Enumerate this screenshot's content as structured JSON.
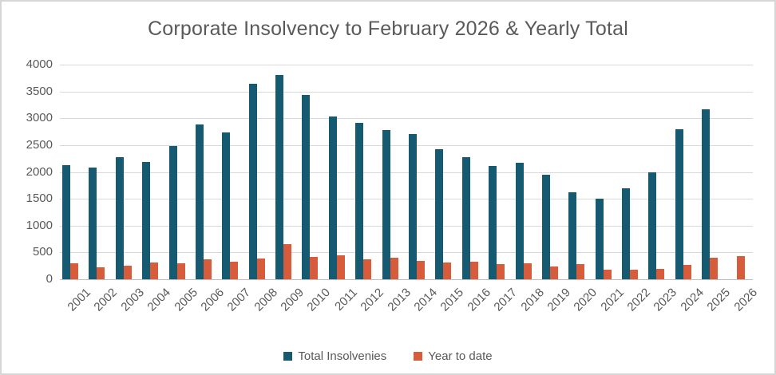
{
  "window": {
    "background": "#FFFFFF",
    "border_color": "#D6D6D6"
  },
  "chart_data": {
    "type": "bar",
    "title": "Corporate Insolvency to February 2026 & Yearly Total",
    "title_color": "#595959",
    "axis_text_color": "#595959",
    "gridline_color": "#D9D9D9",
    "categories": [
      "2001",
      "2002",
      "2003",
      "2004",
      "2005",
      "2006",
      "2007",
      "2008",
      "2009",
      "2010",
      "2011",
      "2012",
      "2013",
      "2014",
      "2015",
      "2016",
      "2017",
      "2018",
      "2019",
      "2020",
      "2021",
      "2022",
      "2023",
      "2024",
      "2025",
      "2026"
    ],
    "series": [
      {
        "name": "Total Insolvenies",
        "color": "#155A70",
        "values": [
          2130,
          2080,
          2280,
          2190,
          2480,
          2890,
          2730,
          3650,
          3800,
          3440,
          3040,
          2910,
          2780,
          2700,
          2420,
          2270,
          2110,
          2170,
          1950,
          1620,
          1500,
          1690,
          2000,
          2800,
          3170,
          null
        ]
      },
      {
        "name": "Year to date",
        "color": "#D65C3B",
        "values": [
          300,
          230,
          260,
          310,
          300,
          370,
          330,
          390,
          660,
          410,
          450,
          370,
          400,
          340,
          310,
          330,
          280,
          300,
          240,
          290,
          180,
          180,
          200,
          270,
          400,
          430
        ]
      }
    ],
    "ylim": [
      0,
      4000
    ],
    "yticks": [
      0,
      500,
      1000,
      1500,
      2000,
      2500,
      3000,
      3500,
      4000
    ],
    "grid": true,
    "legend_position": "bottom"
  }
}
